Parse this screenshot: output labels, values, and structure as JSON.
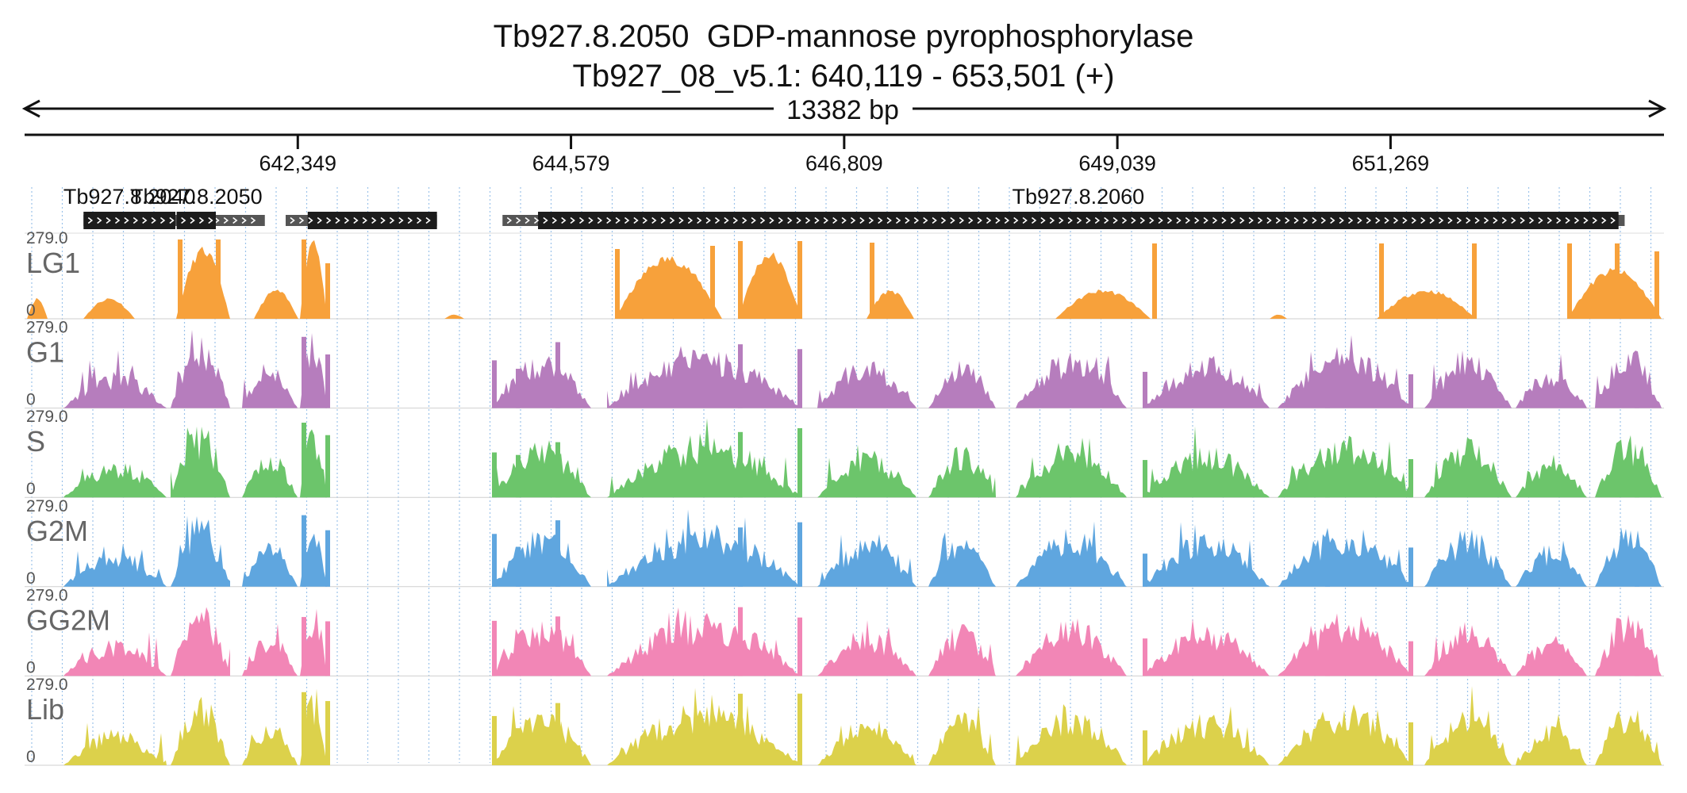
{
  "header": {
    "title": "Tb927.8.2050  GDP-mannose pyrophosphorylase",
    "location": "Tb927_08_v5.1: 640,119 - 653,501 (+)",
    "span_label": "13382 bp"
  },
  "axis": {
    "start": 640119,
    "end": 653501,
    "ticks": [
      {
        "pos": 642349,
        "label": "642,349"
      },
      {
        "pos": 644579,
        "label": "644,579"
      },
      {
        "pos": 646809,
        "label": "646,809"
      },
      {
        "pos": 649039,
        "label": "649,039"
      },
      {
        "pos": 651269,
        "label": "651,269"
      }
    ]
  },
  "genes": [
    {
      "name": "Tb927.8.2040",
      "label": "Tb927.8.2040",
      "start": 640600,
      "end": 642080,
      "cds_start": 640600,
      "cds_end": 641350,
      "strand": "+"
    },
    {
      "name": "Tb927.8.2050",
      "label": "Tb927.8.2050",
      "start": 641360,
      "end": 641680,
      "cds_start": 641360,
      "cds_end": 641680,
      "strand": "+"
    },
    {
      "name": "Tb927.8.2050-b",
      "label": "",
      "start": 642250,
      "end": 643485,
      "cds_start": 642430,
      "cds_end": 643485,
      "strand": "+"
    },
    {
      "name": "Tb927.8.2060",
      "label": "Tb927.8.2060",
      "start": 644020,
      "end": 653180,
      "cds_start": 644310,
      "cds_end": 653130,
      "strand": "+"
    }
  ],
  "tracks": [
    {
      "name": "LG1",
      "max": "279.0",
      "min": "0",
      "color": "#f7a13b"
    },
    {
      "name": "G1",
      "max": "279.0",
      "min": "0",
      "color": "#b67dbd"
    },
    {
      "name": "S",
      "max": "279.0",
      "min": "0",
      "color": "#6cc56b"
    },
    {
      "name": "G2M",
      "max": "279.0",
      "min": "0",
      "color": "#5fa6df"
    },
    {
      "name": "GG2M",
      "max": "279.0",
      "min": "0",
      "color": "#f286b6"
    },
    {
      "name": "Lib",
      "max": "279.0",
      "min": "0",
      "color": "#dcd14b"
    }
  ]
}
